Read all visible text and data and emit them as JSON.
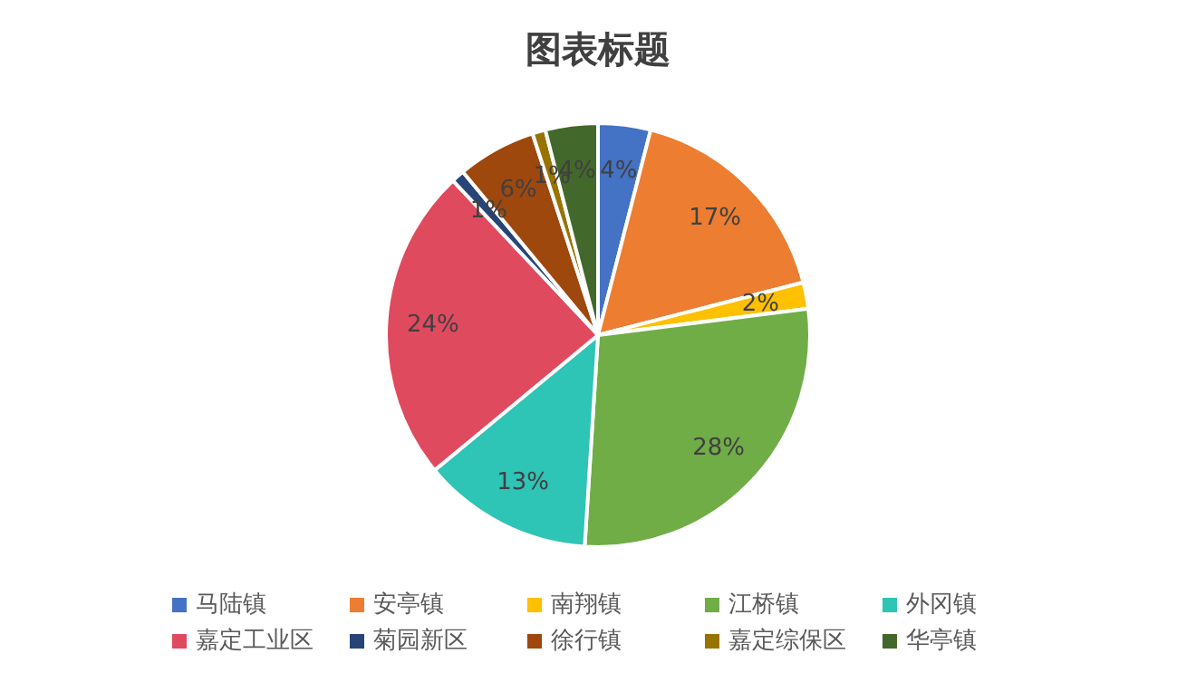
{
  "chart_data": {
    "type": "pie",
    "title": "图表标题",
    "categories": [
      "马陆镇",
      "安亭镇",
      "南翔镇",
      "江桥镇",
      "外冈镇",
      "嘉定工业区",
      "菊园新区",
      "徐行镇",
      "嘉定综保区",
      "华亭镇"
    ],
    "values": [
      4,
      17,
      2,
      28,
      13,
      24,
      1,
      6,
      1,
      4
    ],
    "colors": [
      "#4472c4",
      "#ed7d31",
      "#ffc000",
      "#70ad47",
      "#2ec4b6",
      "#e04a5f",
      "#264478",
      "#9e480e",
      "#997300",
      "#43682b"
    ],
    "value_labels": [
      "4%",
      "17%",
      "2%",
      "28%",
      "13%",
      "24%",
      "1%",
      "6%",
      "1%",
      "4%"
    ],
    "legend": "bottom"
  }
}
